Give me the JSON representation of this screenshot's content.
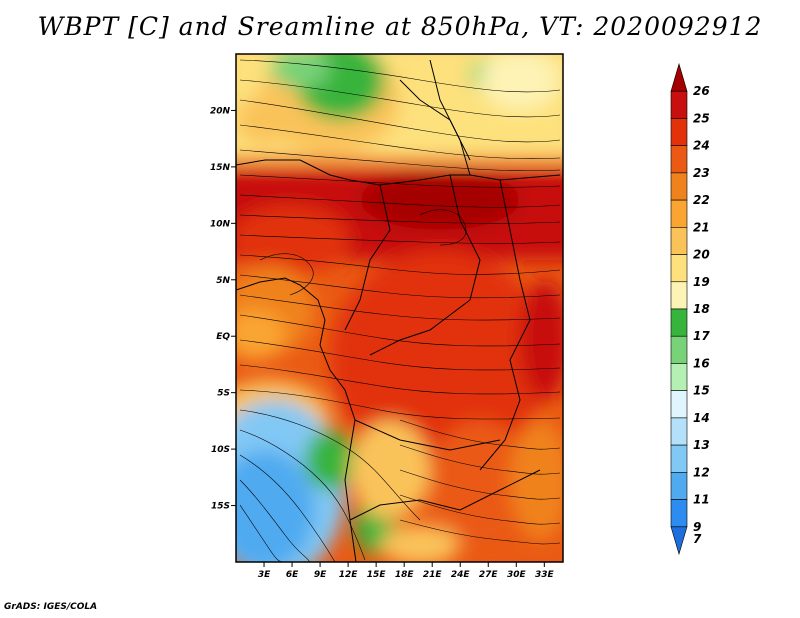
{
  "title": "WBPT [C] and Sreamline at 850hPa, VT: 2020092912",
  "credit": "GrADS: IGES/COLA",
  "map": {
    "lon_range": [
      0,
      35
    ],
    "lat_range": [
      -20,
      25
    ],
    "lat_ticks": [
      {
        "value": 20,
        "label": "20N"
      },
      {
        "value": 15,
        "label": "15N"
      },
      {
        "value": 10,
        "label": "10N"
      },
      {
        "value": 5,
        "label": "5N"
      },
      {
        "value": 0,
        "label": "EQ"
      },
      {
        "value": -5,
        "label": "5S"
      },
      {
        "value": -10,
        "label": "10S"
      },
      {
        "value": -15,
        "label": "15S"
      }
    ],
    "lon_ticks": [
      {
        "value": 3,
        "label": "3E"
      },
      {
        "value": 6,
        "label": "6E"
      },
      {
        "value": 9,
        "label": "9E"
      },
      {
        "value": 12,
        "label": "12E"
      },
      {
        "value": 15,
        "label": "15E"
      },
      {
        "value": 18,
        "label": "18E"
      },
      {
        "value": 21,
        "label": "21E"
      },
      {
        "value": 24,
        "label": "24E"
      },
      {
        "value": 27,
        "label": "27E"
      },
      {
        "value": 30,
        "label": "30E"
      },
      {
        "value": 33,
        "label": "33E"
      }
    ]
  },
  "colorbar": {
    "levels": [
      {
        "label": "26",
        "color": "#a50000"
      },
      {
        "label": "25",
        "color": "#c80f0f"
      },
      {
        "label": "24",
        "color": "#e1320a"
      },
      {
        "label": "23",
        "color": "#ea5a14"
      },
      {
        "label": "22",
        "color": "#f0821e"
      },
      {
        "label": "21",
        "color": "#faa532"
      },
      {
        "label": "20",
        "color": "#fac35a"
      },
      {
        "label": "19",
        "color": "#fde17d"
      },
      {
        "label": "18",
        "color": "#fdf3b4"
      },
      {
        "label": "17",
        "color": "#37b43c"
      },
      {
        "label": "16",
        "color": "#78d278"
      },
      {
        "label": "15",
        "color": "#b4f0b4"
      },
      {
        "label": "14",
        "color": "#e1f5ff"
      },
      {
        "label": "13",
        "color": "#b4e1fa"
      },
      {
        "label": "12",
        "color": "#82c8f5"
      },
      {
        "label": "11",
        "color": "#50aaf0"
      },
      {
        "label": "9",
        "color": "#2d8cf0"
      },
      {
        "label": "7",
        "color": "#1e6edc"
      }
    ]
  }
}
